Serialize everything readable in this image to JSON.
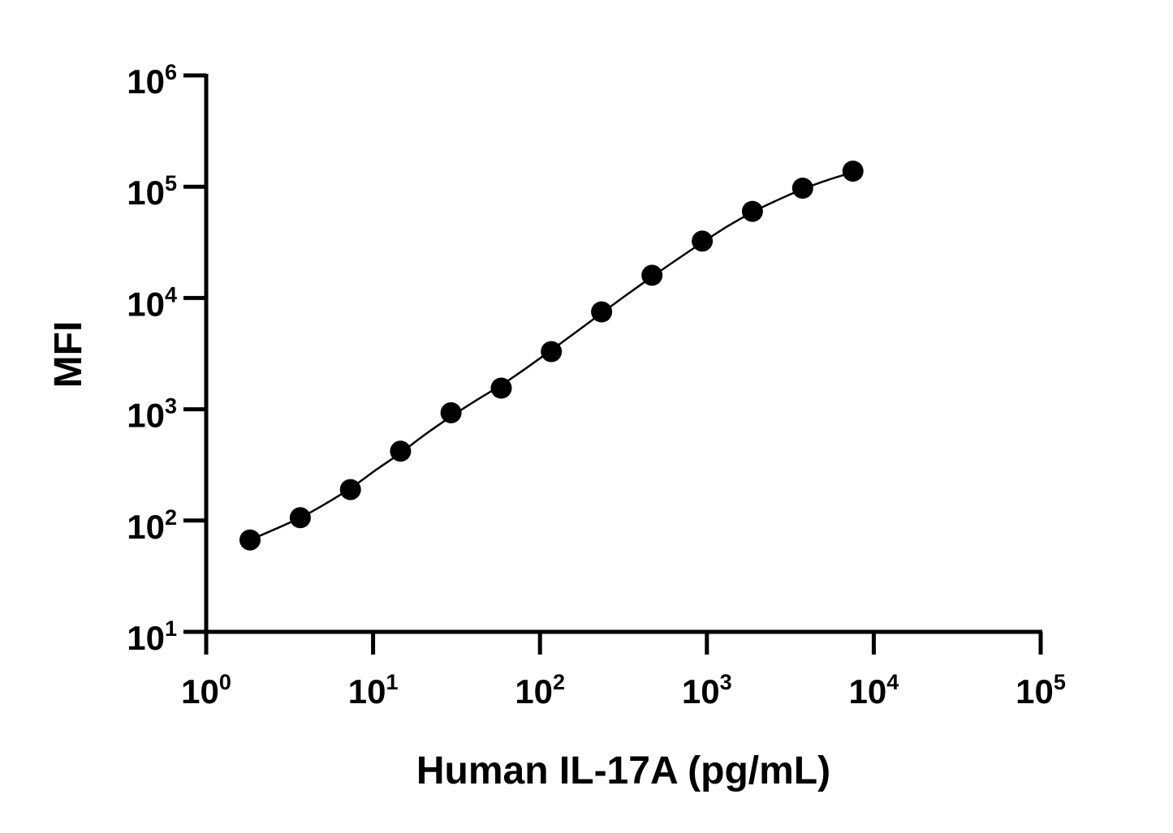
{
  "chart_data": {
    "type": "scatter",
    "title": "",
    "xlabel": "Human IL-17A (pg/mL)",
    "ylabel": "MFI",
    "x_scale": "log10",
    "y_scale": "log10",
    "xlim": [
      1,
      100000
    ],
    "ylim": [
      10,
      1000000
    ],
    "x_ticks": [
      {
        "base": "10",
        "exp": "0",
        "value": 1
      },
      {
        "base": "10",
        "exp": "1",
        "value": 10
      },
      {
        "base": "10",
        "exp": "2",
        "value": 100
      },
      {
        "base": "10",
        "exp": "3",
        "value": 1000
      },
      {
        "base": "10",
        "exp": "4",
        "value": 10000
      },
      {
        "base": "10",
        "exp": "5",
        "value": 100000
      }
    ],
    "y_ticks": [
      {
        "base": "10",
        "exp": "1",
        "value": 10
      },
      {
        "base": "10",
        "exp": "2",
        "value": 100
      },
      {
        "base": "10",
        "exp": "3",
        "value": 1000
      },
      {
        "base": "10",
        "exp": "4",
        "value": 10000
      },
      {
        "base": "10",
        "exp": "5",
        "value": 100000
      },
      {
        "base": "10",
        "exp": "6",
        "value": 1000000
      }
    ],
    "grid": false,
    "legend": "none",
    "marker_color": "#000000",
    "line_color": "#000000",
    "series": [
      {
        "x": [
          1.83,
          3.66,
          7.32,
          14.6,
          29.3,
          58.6,
          117,
          234,
          469,
          938,
          1875,
          3750,
          7500
        ],
        "y": [
          67,
          106,
          190,
          420,
          930,
          1550,
          3300,
          7500,
          16000,
          32500,
          60000,
          97000,
          138000
        ]
      }
    ],
    "fit_curve": {
      "x": [
        1.83,
        2.6,
        3.66,
        5.2,
        7.32,
        10.4,
        14.6,
        20.7,
        29.3,
        41.4,
        58.6,
        82.9,
        117,
        166,
        234,
        331,
        469,
        663,
        938,
        1326,
        1875,
        2652,
        3750,
        5303,
        7500
      ],
      "y": [
        67,
        84,
        106,
        142,
        195,
        285,
        405,
        600,
        860,
        1200,
        1650,
        2350,
        3400,
        5000,
        7300,
        10700,
        15500,
        22200,
        31500,
        44000,
        59000,
        76000,
        95000,
        115000,
        135000
      ]
    }
  }
}
